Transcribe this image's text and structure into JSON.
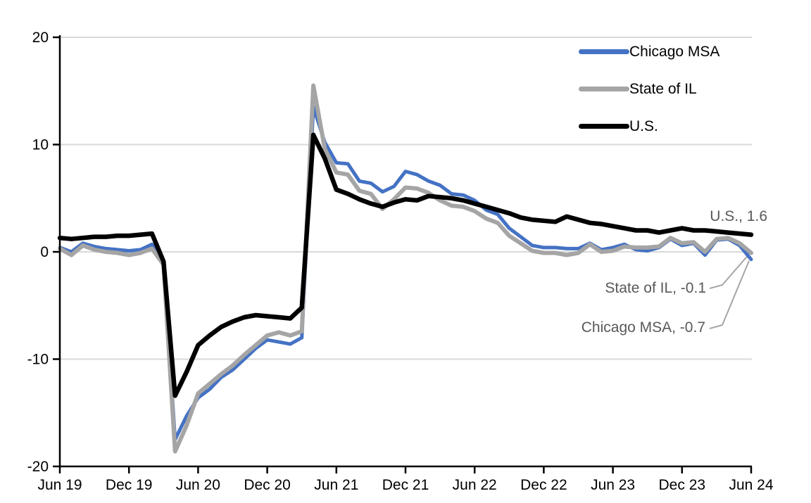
{
  "chart_data": {
    "type": "line",
    "title": "",
    "xlabel": "",
    "ylabel": "",
    "ylim": [
      -20,
      20
    ],
    "grid": "horizontal",
    "legend_position": "top-right-inside",
    "y_ticks": [
      {
        "value": 20,
        "label": "20"
      },
      {
        "value": 10,
        "label": "10"
      },
      {
        "value": 0,
        "label": "0"
      },
      {
        "value": -10,
        "label": "-10"
      },
      {
        "value": -20,
        "label": "-20"
      }
    ],
    "x_tick_labels": [
      "Jun 19",
      "Dec 19",
      "Jun 20",
      "Dec 20",
      "Jun 21",
      "Dec 21",
      "Jun 22",
      "Dec 22",
      "Jun 23",
      "Dec 23",
      "Jun 24"
    ],
    "x_tick_month_indices": [
      0,
      6,
      12,
      18,
      24,
      30,
      36,
      42,
      48,
      54,
      60
    ],
    "months": [
      "Jun 2019",
      "Jul 2019",
      "Aug 2019",
      "Sep 2019",
      "Oct 2019",
      "Nov 2019",
      "Dec 2019",
      "Jan 2020",
      "Feb 2020",
      "Mar 2020",
      "Apr 2020",
      "May 2020",
      "Jun 2020",
      "Jul 2020",
      "Aug 2020",
      "Sep 2020",
      "Oct 2020",
      "Nov 2020",
      "Dec 2020",
      "Jan 2021",
      "Feb 2021",
      "Mar 2021",
      "Apr 2021",
      "May 2021",
      "Jun 2021",
      "Jul 2021",
      "Aug 2021",
      "Sep 2021",
      "Oct 2021",
      "Nov 2021",
      "Dec 2021",
      "Jan 2022",
      "Feb 2022",
      "Mar 2022",
      "Apr 2022",
      "May 2022",
      "Jun 2022",
      "Jul 2022",
      "Aug 2022",
      "Sep 2022",
      "Oct 2022",
      "Nov 2022",
      "Dec 2022",
      "Jan 2023",
      "Feb 2023",
      "Mar 2023",
      "Apr 2023",
      "May 2023",
      "Jun 2023",
      "Jul 2023",
      "Aug 2023",
      "Sep 2023",
      "Oct 2023",
      "Nov 2023",
      "Dec 2023",
      "Jan 2024",
      "Feb 2024",
      "Mar 2024",
      "Apr 2024",
      "May 2024",
      "Jun 2024"
    ],
    "series": [
      {
        "name": "Chicago MSA",
        "color": "#4472C4",
        "last_value": -0.7,
        "values": [
          0.4,
          0.0,
          0.8,
          0.5,
          0.3,
          0.2,
          0.1,
          0.2,
          0.7,
          -1.0,
          -17.5,
          -15.3,
          -13.6,
          -12.8,
          -11.7,
          -11.0,
          -10.0,
          -9.0,
          -8.2,
          -8.4,
          -8.6,
          -8.0,
          13.5,
          10.2,
          8.3,
          8.2,
          6.6,
          6.4,
          5.6,
          6.1,
          7.5,
          7.2,
          6.6,
          6.2,
          5.4,
          5.3,
          4.8,
          3.9,
          3.5,
          2.2,
          1.4,
          0.6,
          0.4,
          0.4,
          0.3,
          0.3,
          0.8,
          0.2,
          0.4,
          0.7,
          0.2,
          0.1,
          0.4,
          1.2,
          0.6,
          0.8,
          -0.3,
          1.1,
          1.2,
          0.6,
          -0.7
        ]
      },
      {
        "name": "State of IL",
        "color": "#A5A5A5",
        "last_value": -0.1,
        "values": [
          0.3,
          -0.3,
          0.6,
          0.2,
          0.0,
          -0.1,
          -0.3,
          -0.1,
          0.3,
          -1.2,
          -18.6,
          -16.2,
          -13.2,
          -12.3,
          -11.4,
          -10.6,
          -9.6,
          -8.7,
          -7.8,
          -7.5,
          -7.8,
          -7.4,
          15.5,
          9.6,
          7.4,
          7.2,
          5.7,
          5.4,
          4.0,
          4.9,
          6.0,
          5.9,
          5.5,
          4.8,
          4.3,
          4.2,
          3.8,
          3.1,
          2.7,
          1.5,
          0.8,
          0.1,
          -0.1,
          -0.1,
          -0.3,
          -0.1,
          0.7,
          0.0,
          0.1,
          0.5,
          0.4,
          0.4,
          0.5,
          1.3,
          0.8,
          0.9,
          0.0,
          1.2,
          1.3,
          0.8,
          -0.1
        ]
      },
      {
        "name": "U.S.",
        "color": "#000000",
        "last_value": 1.6,
        "values": [
          1.3,
          1.2,
          1.3,
          1.4,
          1.4,
          1.5,
          1.5,
          1.6,
          1.7,
          -0.9,
          -13.4,
          -11.2,
          -8.7,
          -7.8,
          -7.0,
          -6.5,
          -6.1,
          -5.9,
          -6.0,
          -6.1,
          -6.2,
          -5.2,
          10.9,
          8.7,
          5.8,
          5.4,
          4.9,
          4.5,
          4.2,
          4.6,
          4.9,
          4.8,
          5.2,
          5.1,
          5.0,
          4.8,
          4.5,
          4.2,
          3.9,
          3.6,
          3.2,
          3.0,
          2.9,
          2.8,
          3.3,
          3.0,
          2.7,
          2.6,
          2.4,
          2.2,
          2.0,
          2.0,
          1.8,
          2.0,
          2.2,
          2.0,
          2.0,
          1.9,
          1.8,
          1.7,
          1.6
        ]
      }
    ],
    "annotations": [
      {
        "text": "U.S., 1.6"
      },
      {
        "text": "State of IL, -0.1"
      },
      {
        "text": "Chicago MSA, -0.7"
      }
    ]
  },
  "colors": {
    "chicago_msa": "#4472C4",
    "state_of_il": "#A5A5A5",
    "us": "#000000",
    "gridline": "#D9D9D9",
    "annotation_text": "#595959",
    "leader_line": "#A5A5A5",
    "axis": "#000000"
  }
}
